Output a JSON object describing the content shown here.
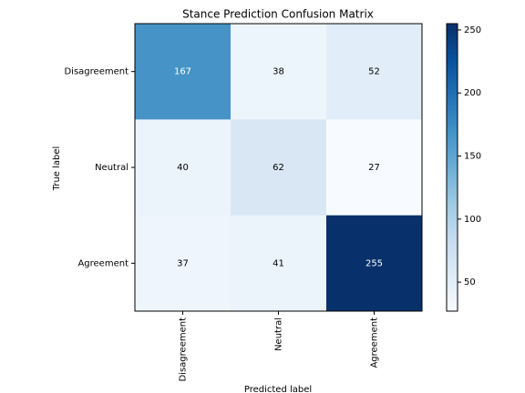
{
  "chart_data": {
    "type": "heatmap",
    "title": "Stance Prediction Confusion Matrix",
    "x_label": "Predicted label",
    "y_label": "True label",
    "x_categories": [
      "Disagreement",
      "Neutral",
      "Agreement"
    ],
    "y_categories": [
      "Disagreement",
      "Neutral",
      "Agreement"
    ],
    "values": [
      [
        167,
        38,
        52
      ],
      [
        40,
        62,
        27
      ],
      [
        37,
        41,
        255
      ]
    ],
    "colormap": [
      "#f7fbff",
      "#deebf7",
      "#c6dbef",
      "#9ecae1",
      "#6baed6",
      "#4292c6",
      "#2171b5",
      "#08519c",
      "#08306b"
    ],
    "colorbar_lim": [
      27,
      255
    ],
    "colorbar_ticks": [
      50,
      100,
      150,
      200,
      250
    ]
  }
}
